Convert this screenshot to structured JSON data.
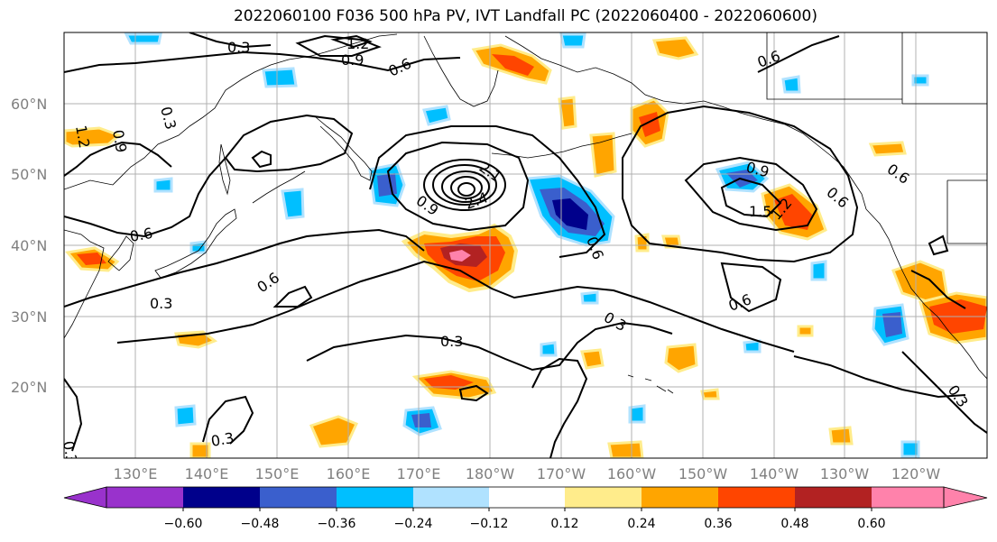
{
  "title": "2022060100 F036 500 hPa PV, IVT Landfall PC (2022060400 - 2022060600)",
  "lat_labels": [
    "60°N",
    "50°N",
    "40°N",
    "30°N",
    "20°N"
  ],
  "lon_labels": [
    "130°E",
    "140°E",
    "150°E",
    "160°E",
    "170°E",
    "180°W",
    "170°W",
    "160°W",
    "150°W",
    "140°W",
    "130°W",
    "120°W"
  ],
  "colorbar": {
    "ticks": [
      "−0.60",
      "−0.48",
      "−0.36",
      "−0.24",
      "−0.12",
      "0.12",
      "0.24",
      "0.36",
      "0.48",
      "0.60"
    ],
    "colors": [
      "#9932cc",
      "#00008b",
      "#3a5fcd",
      "#00bfff",
      "#b0e2ff",
      "#ffffff",
      "#ffec8b",
      "#ffa500",
      "#ff4500",
      "#b22222",
      "#ff82ab"
    ]
  },
  "contour_labels": [
    "0.3",
    "1.2",
    "0.9",
    "0.6",
    "0.3",
    "1.2",
    "0.9",
    "0.6",
    "0.6",
    "0.3",
    "0.6",
    "0.3",
    "0.3",
    "0.6",
    "0.9",
    "1.5",
    "1.2",
    "0.6",
    "0.9",
    "0.6",
    "0.3",
    "0.3",
    "0.3",
    "0.6",
    "2.1",
    "2.4"
  ]
}
